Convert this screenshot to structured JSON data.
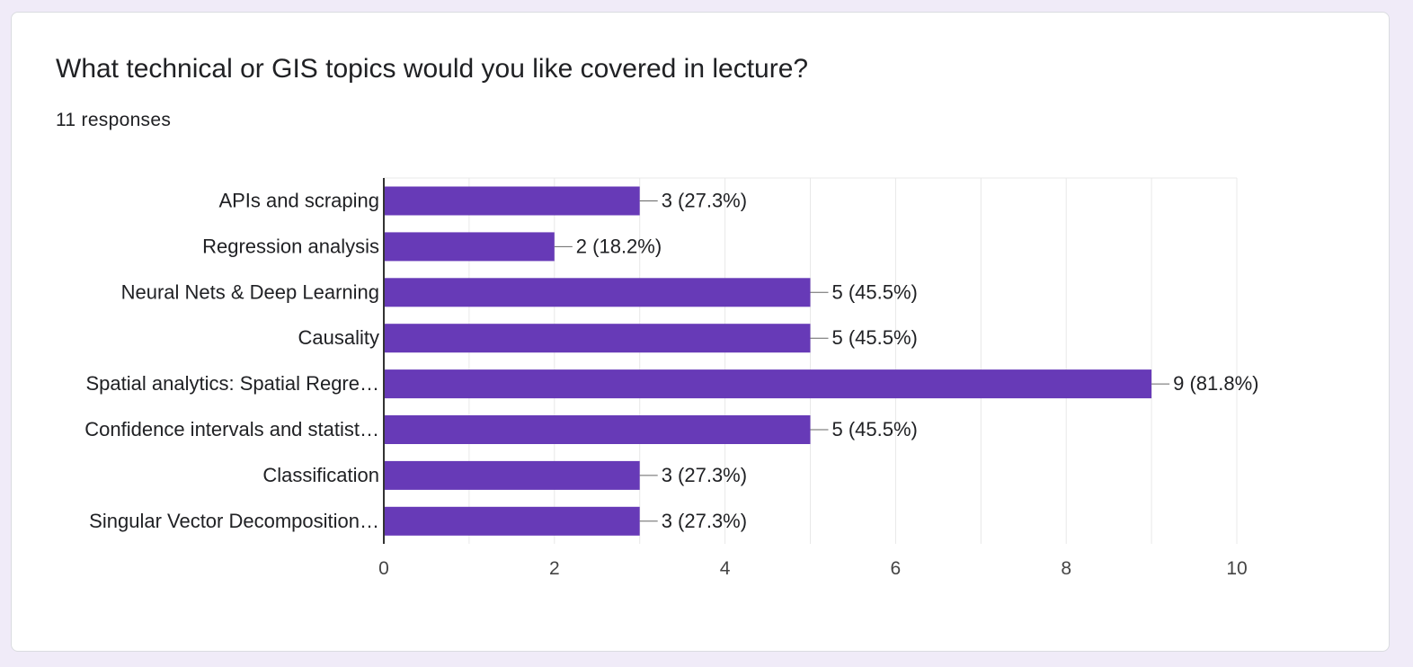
{
  "question": {
    "title": "What technical or GIS topics would you like covered in lecture?",
    "responses": "11 responses"
  },
  "colors": {
    "bar": "#673ab7",
    "text": "#202124",
    "axis_text": "#444444",
    "grid": "#e8e8e8",
    "background": "#f0ebf8"
  },
  "chart_data": {
    "type": "bar",
    "orientation": "horizontal",
    "categories": [
      "APIs and scraping",
      "Regression analysis",
      "Neural Nets & Deep Learning",
      "Causality",
      "Spatial analytics: Spatial Regre…",
      "Confidence intervals and statist…",
      "Classification",
      "Singular Vector Decomposition…"
    ],
    "values": [
      3,
      2,
      5,
      5,
      9,
      5,
      3,
      3
    ],
    "data_labels": [
      "3 (27.3%)",
      "2 (18.2%)",
      "5 (45.5%)",
      "5 (45.5%)",
      "9 (81.8%)",
      "5 (45.5%)",
      "3 (27.3%)",
      "3 (27.3%)"
    ],
    "xlim": [
      0,
      10
    ],
    "x_ticks": [
      0,
      2,
      4,
      6,
      8,
      10
    ],
    "grid": true,
    "legend": "none"
  }
}
